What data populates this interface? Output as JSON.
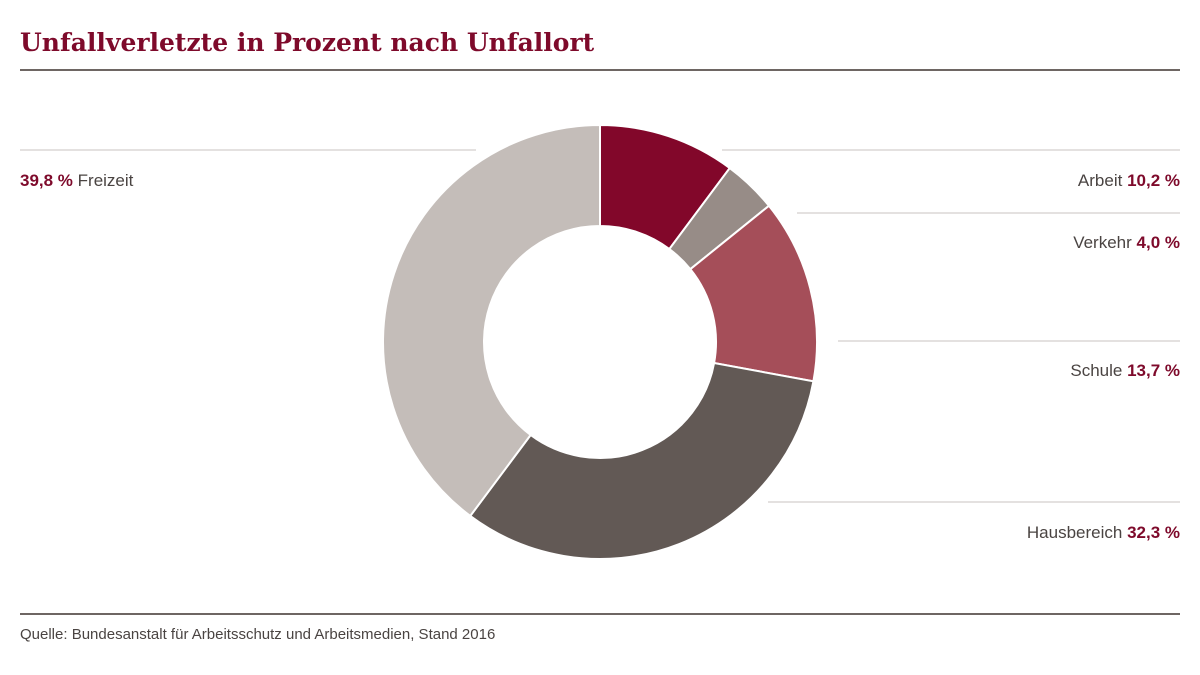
{
  "chart_data": {
    "type": "pie",
    "style": "donut",
    "title": "Unfallverletzte in Prozent nach Unfallort",
    "source": "Quelle: Bundesanstalt für Arbeitsschutz und Arbeitsmedien, Stand 2016",
    "slices": [
      {
        "label": "Arbeit",
        "value": 10.2,
        "value_label": "10,2 %",
        "color": "#82072a"
      },
      {
        "label": "Verkehr",
        "value": 4.0,
        "value_label": "4,0 %",
        "color": "#978c87"
      },
      {
        "label": "Schule",
        "value": 13.7,
        "value_label": "13,7 %",
        "color": "#a54e59"
      },
      {
        "label": "Hausbereich",
        "value": 32.3,
        "value_label": "32,3 %",
        "color": "#625955"
      },
      {
        "label": "Freizeit",
        "value": 39.8,
        "value_label": "39,8 %",
        "color": "#c4bdb9"
      }
    ]
  }
}
